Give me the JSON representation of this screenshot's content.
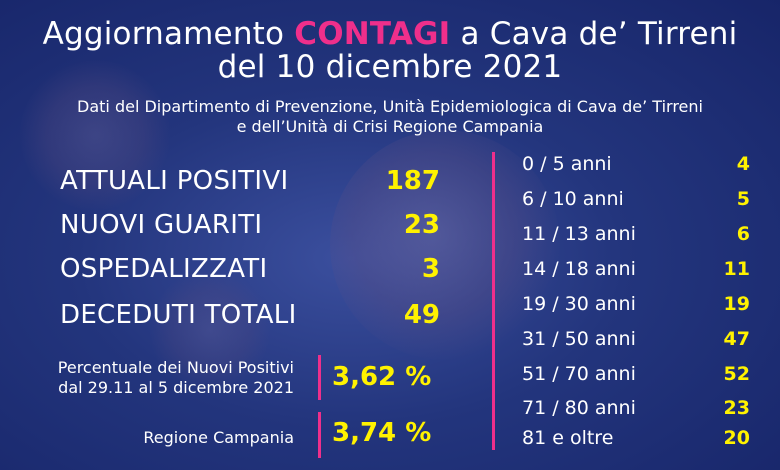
{
  "header": {
    "title_pre": "Aggiornamento ",
    "title_highlight": "CONTAGI",
    "title_post": " a Cava de’ Tirreni",
    "title_line2": "del 10 dicembre 2021",
    "source_line1": "Dati del Dipartimento di Prevenzione, Unità Epidemiologica di Cava de’ Tirreni",
    "source_line2": "e dell’Unità di Crisi Regione Campania"
  },
  "stats": [
    {
      "label": "ATTUALI POSITIVI",
      "value": "187"
    },
    {
      "label": "NUOVI GUARITI",
      "value": "23"
    },
    {
      "label": "OSPEDALIZZATI",
      "value": "3"
    },
    {
      "label": "DECEDUTI TOTALI",
      "value": "49"
    }
  ],
  "percentages": {
    "new_positive_label_1": "Percentuale dei Nuovi Positivi",
    "new_positive_label_2": "dal 29.11 al 5 dicembre 2021",
    "new_positive_value": "3,62 %",
    "region_label": "Regione Campania",
    "region_value": "3,74 %"
  },
  "age_groups": [
    {
      "label": "0  /  5 anni",
      "value": "4"
    },
    {
      "label": "6  / 10 anni",
      "value": "5"
    },
    {
      "label": "11  / 13 anni",
      "value": "6"
    },
    {
      "label": "14 / 18  anni",
      "value": "11"
    },
    {
      "label": "19 / 30 anni",
      "value": "19"
    },
    {
      "label": "31 / 50 anni",
      "value": "47"
    },
    {
      "label": "51 / 70 anni",
      "value": "52"
    },
    {
      "label": "71 / 80 anni",
      "value": "23"
    },
    {
      "label": "81 e oltre",
      "value": "20"
    }
  ],
  "colors": {
    "background": "#23357d",
    "highlight": "#ef2f8b",
    "value": "#fff200",
    "text": "#ffffff"
  }
}
